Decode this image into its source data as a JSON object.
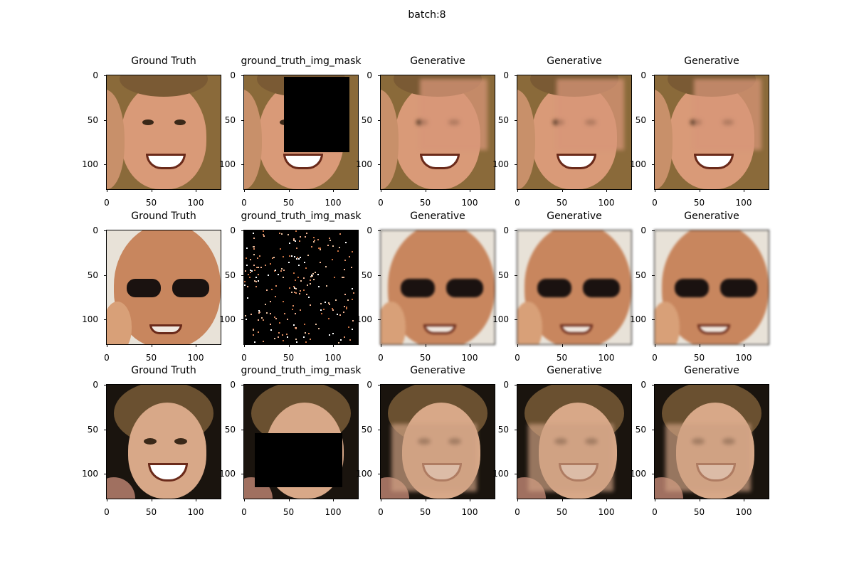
{
  "figure": {
    "suptitle": "batch:8"
  },
  "axes": {
    "xticks": [
      "0",
      "50",
      "100"
    ],
    "yticks": [
      "0",
      "50",
      "100"
    ]
  },
  "rows": [
    {
      "panels": [
        {
          "title": "Ground Truth",
          "kind": "face1"
        },
        {
          "title": "ground_truth_img_mask",
          "kind": "face1-mask"
        },
        {
          "title": "Generative",
          "kind": "face1-gen"
        },
        {
          "title": "Generative",
          "kind": "face1-gen"
        },
        {
          "title": "Generative",
          "kind": "face1-gen"
        }
      ]
    },
    {
      "panels": [
        {
          "title": "Ground Truth",
          "kind": "face2"
        },
        {
          "title": "ground_truth_img_mask",
          "kind": "face2-mask"
        },
        {
          "title": "Generative",
          "kind": "face2-gen"
        },
        {
          "title": "Generative",
          "kind": "face2-gen"
        },
        {
          "title": "Generative",
          "kind": "face2-gen"
        }
      ]
    },
    {
      "panels": [
        {
          "title": "Ground Truth",
          "kind": "face3"
        },
        {
          "title": "ground_truth_img_mask",
          "kind": "face3-mask"
        },
        {
          "title": "Generative",
          "kind": "face3-gen"
        },
        {
          "title": "Generative",
          "kind": "face3-gen"
        },
        {
          "title": "Generative",
          "kind": "face3-gen"
        }
      ]
    }
  ]
}
